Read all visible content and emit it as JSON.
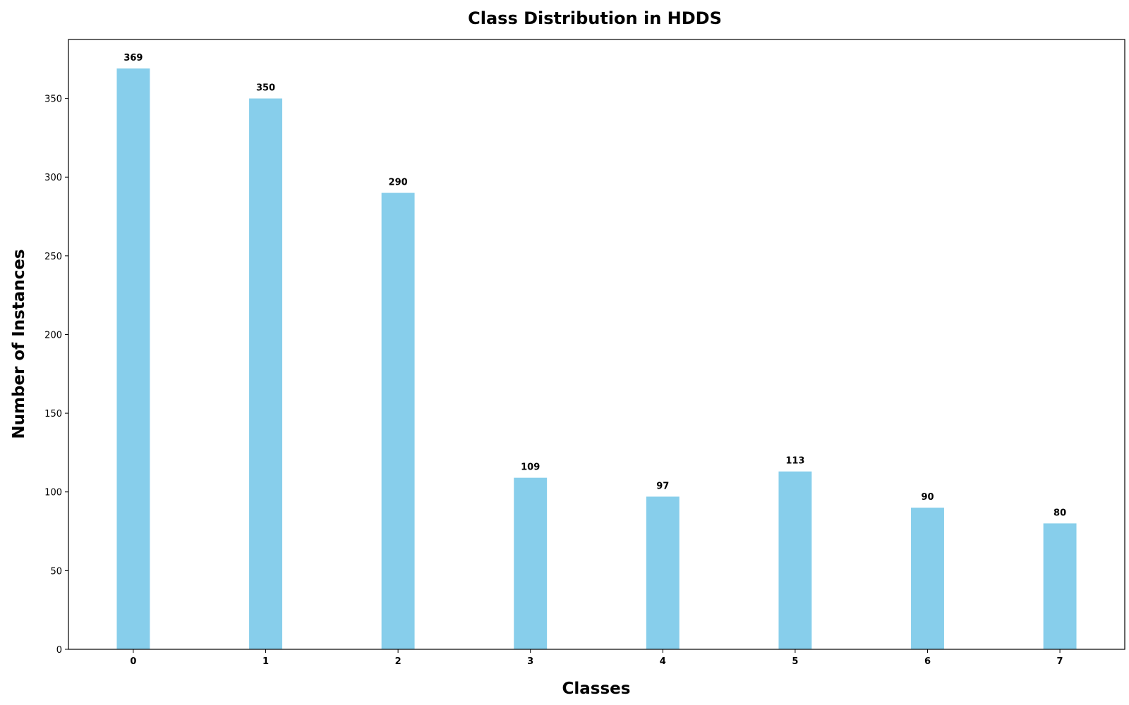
{
  "chart_data": {
    "type": "bar",
    "title": "Class Distribution in HDDS",
    "xlabel": "Classes",
    "ylabel": "Number of Instances",
    "categories": [
      "0",
      "1",
      "2",
      "3",
      "4",
      "5",
      "6",
      "7"
    ],
    "values": [
      369,
      350,
      290,
      109,
      97,
      113,
      90,
      80
    ],
    "ylim": [
      0,
      387.45
    ],
    "yticks": [
      0,
      50,
      100,
      150,
      200,
      250,
      300,
      350
    ],
    "bar_color": "#87CEEB",
    "grid": false,
    "legend": false,
    "data_labels": true
  }
}
